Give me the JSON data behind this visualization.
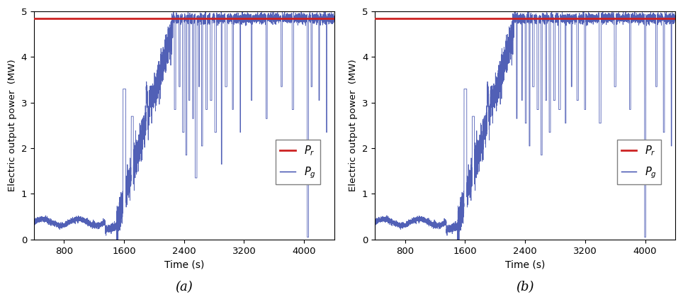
{
  "title_a": "(a)",
  "title_b": "(b)",
  "xlabel": "Time (s)",
  "ylabel": "Electric output power  (MW)",
  "xlim": [
    400,
    4400
  ],
  "ylim": [
    0,
    5
  ],
  "yticks": [
    0,
    1,
    2,
    3,
    4,
    5
  ],
  "xticks": [
    800,
    1600,
    2400,
    3200,
    4000
  ],
  "Pr_value": 4.85,
  "Pr_color": "#cc2222",
  "Pg_color": "#3344aa",
  "Pg_alpha": 0.85,
  "legend_Pr": "$P_r$",
  "legend_Pg": "$P_g$",
  "figsize": [
    9.64,
    4.26
  ],
  "dpi": 100,
  "bg_color": "#f8f8f8"
}
